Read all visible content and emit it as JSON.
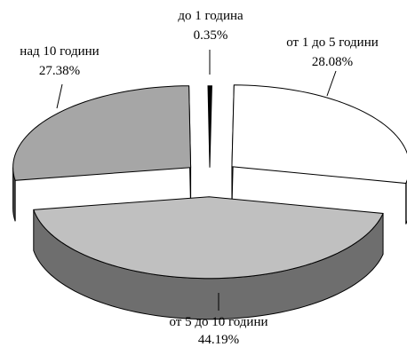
{
  "chart_data": {
    "type": "pie",
    "title": "",
    "exploded": true,
    "three_d": true,
    "legend": "none",
    "slices": [
      {
        "category": "до 1 година",
        "value_label": "0.35%",
        "value": 0.35,
        "top_color": "#000000",
        "side_color": "#000000"
      },
      {
        "category": "от 1 до 5 години",
        "value_label": "28.08%",
        "value": 28.08,
        "top_color": "#ffffff",
        "side_color": "#808080"
      },
      {
        "category": "от 5 до 10 години",
        "value_label": "44.19%",
        "value": 44.19,
        "top_color": "#c0c0c0",
        "side_color": "#6e6e6e"
      },
      {
        "category": "над 10 години",
        "value_label": "27.38%",
        "value": 27.38,
        "top_color": "#a6a6a6",
        "side_color": "#4d4d4d"
      }
    ]
  }
}
